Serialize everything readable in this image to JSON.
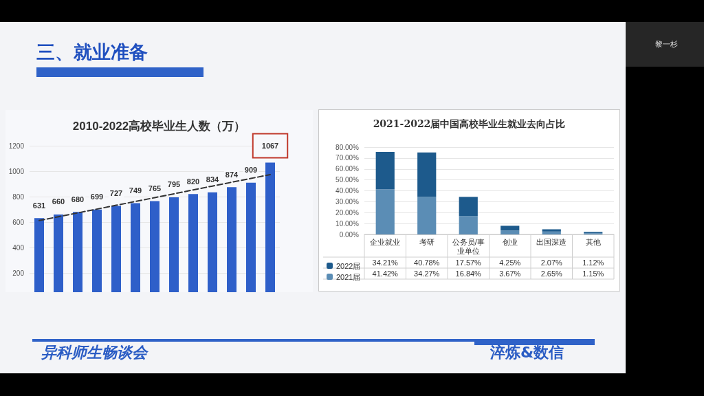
{
  "chart_data": [
    {
      "type": "bar",
      "title": "2010-2022高校毕业生人数（万）",
      "categories": [
        null,
        null,
        null,
        null,
        null,
        null,
        null,
        null,
        null,
        null,
        null,
        null,
        null
      ],
      "series": [
        {
          "type": "bar",
          "color": "#2e5fc9",
          "values": [
            631,
            660,
            680,
            699,
            727,
            749,
            765,
            795,
            820,
            834,
            874,
            909,
            1067
          ],
          "value_labels": [
            "631",
            "660",
            "680",
            "699",
            "727",
            "749",
            "765",
            "795",
            "820",
            "834",
            "874",
            "909",
            "1067"
          ]
        },
        {
          "type": "line",
          "color": "#333333",
          "line_style": "dashed",
          "marker": "none",
          "values": [
            612,
            642,
            672,
            702,
            732,
            762,
            792,
            822,
            853,
            883,
            913,
            943,
            973
          ]
        }
      ],
      "ylim": [
        0,
        1200
      ],
      "yticks": [
        200,
        400,
        600,
        800,
        1000,
        1200
      ],
      "grid": "y",
      "legend": false,
      "annotations": [
        "三、就业准备",
        "异科师生畅谈会",
        "淬炼&数信",
        "黎一杉"
      ]
    },
    {
      "type": "bar",
      "title": "2021-2022届中国高校毕业生就业去向占比",
      "categories": [
        "企业就业",
        "考研",
        "公务员/事业单位",
        "创业",
        "出国深造",
        "其他"
      ],
      "stacked": true,
      "series": [
        {
          "name": "2021届",
          "color": "#5b8db5",
          "values": [
            41.42,
            34.27,
            16.84,
            3.67,
            2.65,
            1.15
          ],
          "value_labels": [
            "41.42%",
            "34.27%",
            "16.84%",
            "3.67%",
            "2.65%",
            "1.15%"
          ]
        },
        {
          "name": "2022届",
          "color": "#1d5a8c",
          "values": [
            34.21,
            40.78,
            17.57,
            4.25,
            2.07,
            1.12
          ],
          "value_labels": [
            "34.21%",
            "40.78%",
            "17.57%",
            "4.25%",
            "2.07%",
            "1.12%"
          ]
        }
      ],
      "ylim": [
        0,
        80
      ],
      "yticks": [
        {
          "value": 0,
          "label": "0.00%"
        },
        {
          "value": 10,
          "label": "10.00%"
        },
        {
          "value": 20,
          "label": "20.00%"
        },
        {
          "value": 30,
          "label": "30.00%"
        },
        {
          "value": 40,
          "label": "40.00%"
        },
        {
          "value": 50,
          "label": "50.00%"
        },
        {
          "value": 60,
          "label": "60.00%"
        },
        {
          "value": 70,
          "label": "70.00%"
        },
        {
          "value": 80,
          "label": "80.00%"
        }
      ],
      "grid": "y",
      "legend": "bottom left"
    }
  ]
}
